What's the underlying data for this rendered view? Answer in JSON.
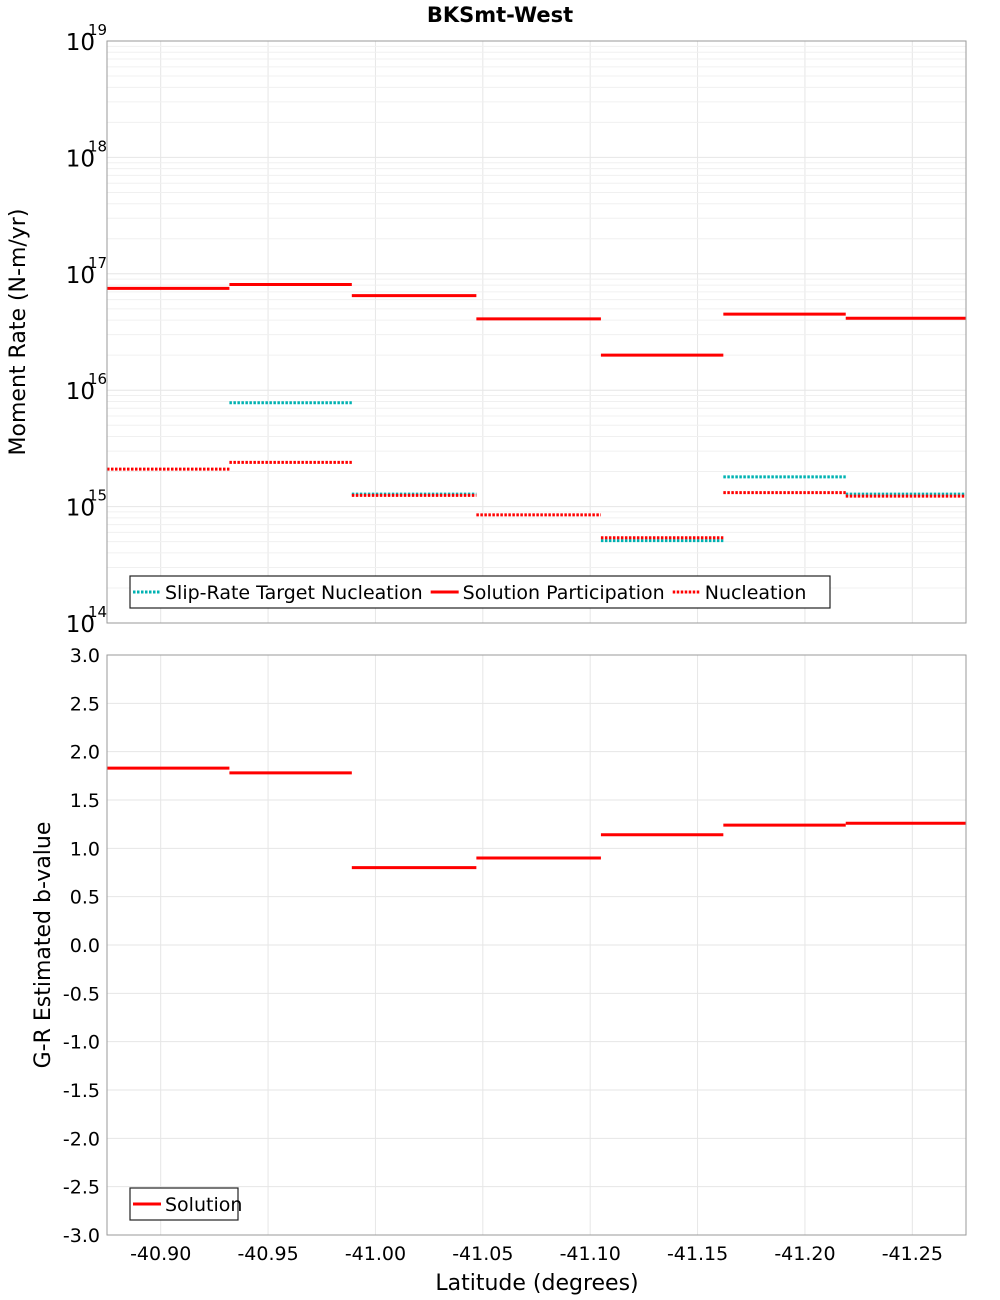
{
  "figure": {
    "title": "BKSmt-West",
    "xlabel": "Latitude (degrees)"
  },
  "chart_data": [
    {
      "type": "line",
      "subtype": "step",
      "title": "BKSmt-West",
      "xlabel": "Latitude (degrees)",
      "ylabel": "Moment Rate (N-m/yr)",
      "yscale": "log",
      "xlim": [
        -40.875,
        -41.275
      ],
      "ylim": [
        100000000000000.0,
        1e+19
      ],
      "x_ticks": [
        "-40.90",
        "-40.95",
        "-41.00",
        "-41.05",
        "-41.10",
        "-41.15",
        "-41.20",
        "-41.25"
      ],
      "y_ticks": [
        {
          "value": 100000000000000.0,
          "base": "10",
          "exp": "14"
        },
        {
          "value": 1000000000000000.0,
          "base": "10",
          "exp": "15"
        },
        {
          "value": 1e+16,
          "base": "10",
          "exp": "16"
        },
        {
          "value": 1e+17,
          "base": "10",
          "exp": "17"
        },
        {
          "value": 1e+18,
          "base": "10",
          "exp": "18"
        },
        {
          "value": 1e+19,
          "base": "10",
          "exp": "19"
        }
      ],
      "grid": true,
      "legend_position": "bottom-left",
      "sections": [
        -40.875,
        -40.932,
        -40.989,
        -41.047,
        -41.105,
        -41.162,
        -41.219,
        -41.275
      ],
      "series": [
        {
          "name": "Slip-Rate Target Nucleation",
          "color": "#00b2b2",
          "style": "dotted",
          "values": [
            null,
            7800000000000000.0,
            1280000000000000.0,
            null,
            510000000000000.0,
            1800000000000000.0,
            1280000000000000.0
          ]
        },
        {
          "name": "Solution Participation",
          "color": "#ff0000",
          "style": "solid",
          "values": [
            7.5e+16,
            8.1e+16,
            6.5e+16,
            4.1e+16,
            2e+16,
            4.5e+16,
            4.15e+16
          ]
        },
        {
          "name": "Nucleation",
          "color": "#ff0000",
          "style": "dotted",
          "values": [
            2100000000000000.0,
            2400000000000000.0,
            1250000000000000.0,
            850000000000000.0,
            540000000000000.0,
            1320000000000000.0,
            1230000000000000.0
          ]
        }
      ]
    },
    {
      "type": "line",
      "subtype": "step",
      "xlabel": "Latitude (degrees)",
      "ylabel": "G-R Estimated b-value",
      "xlim": [
        -40.875,
        -41.275
      ],
      "ylim": [
        -3.0,
        3.0
      ],
      "x_ticks": [
        "-40.90",
        "-40.95",
        "-41.00",
        "-41.05",
        "-41.10",
        "-41.15",
        "-41.20",
        "-41.25"
      ],
      "y_ticks": [
        "3.0",
        "2.5",
        "2.0",
        "1.5",
        "1.0",
        "0.5",
        "0.0",
        "-0.5",
        "-1.0",
        "-1.5",
        "-2.0",
        "-2.5",
        "-3.0"
      ],
      "grid": true,
      "legend_position": "bottom-left",
      "sections": [
        -40.875,
        -40.932,
        -40.989,
        -41.047,
        -41.105,
        -41.162,
        -41.219,
        -41.275
      ],
      "series": [
        {
          "name": "Solution",
          "color": "#ff0000",
          "style": "solid",
          "values": [
            1.83,
            1.78,
            0.8,
            0.9,
            1.14,
            1.24,
            1.26
          ]
        }
      ]
    }
  ]
}
